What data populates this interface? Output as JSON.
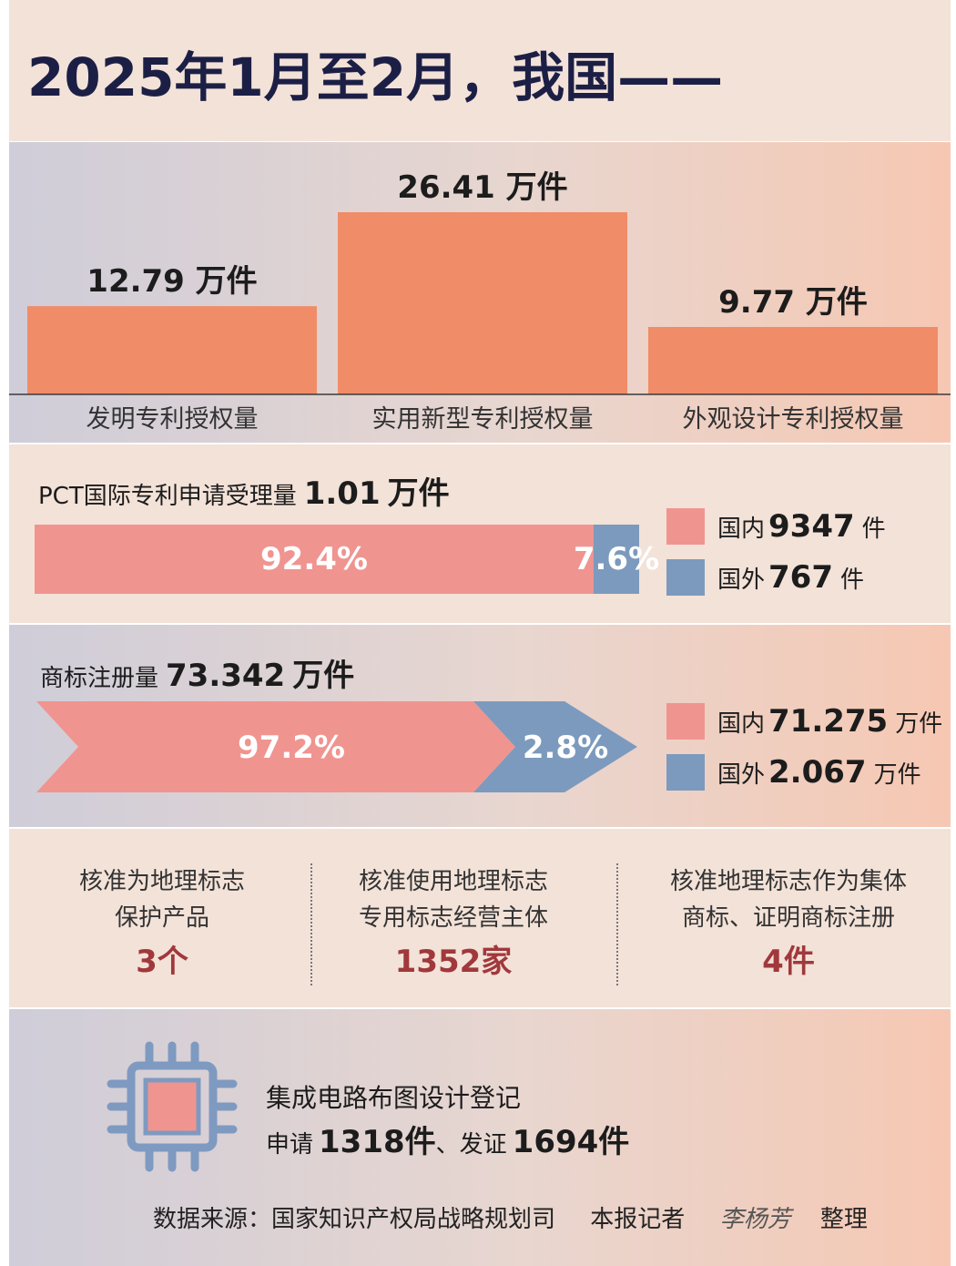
{
  "title": "2025年1月至2月，我国——",
  "chart_data": {
    "type": "bar",
    "categories": [
      "发明专利授权量",
      "实用新型专利授权量",
      "外观设计专利授权量"
    ],
    "values": [
      12.79,
      26.41,
      9.77
    ],
    "value_labels": [
      "12.79 万件",
      "26.41 万件",
      "9.77 万件"
    ],
    "unit": "万件",
    "color": "#f08c68"
  },
  "pct": {
    "label": "PCT国际专利申请受理量",
    "total": "1.01",
    "total_unit": "万件",
    "segments": [
      {
        "pct_label": "92.4%",
        "fraction": 0.924,
        "color": "#f09490"
      },
      {
        "pct_label": "7.6%",
        "fraction": 0.076,
        "color": "#7c9abd"
      }
    ],
    "legend": [
      {
        "name": "国内",
        "value": "9347",
        "unit": "件",
        "color": "#f09490"
      },
      {
        "name": "国外",
        "value": "767",
        "unit": "件",
        "color": "#7c9abd"
      }
    ]
  },
  "trademark": {
    "label": "商标注册量",
    "total": "73.342",
    "total_unit": "万件",
    "segments": [
      {
        "pct_label": "97.2%",
        "fraction": 0.972,
        "color": "#f09490"
      },
      {
        "pct_label": "2.8%",
        "fraction": 0.028,
        "color": "#7c9abd"
      }
    ],
    "legend": [
      {
        "name": "国内",
        "value": "71.275",
        "unit": "万件",
        "color": "#f09490"
      },
      {
        "name": "国外",
        "value": "2.067",
        "unit": "万件",
        "color": "#7c9abd"
      }
    ]
  },
  "gi": [
    {
      "line1": "核准为地理标志",
      "line2": "保护产品",
      "value": "3个"
    },
    {
      "line1": "核准使用地理标志",
      "line2": "专用标志经营主体",
      "value": "1352家"
    },
    {
      "line1": "核准地理标志作为集体",
      "line2": "商标、证明商标注册",
      "value": "4件"
    }
  ],
  "ic": {
    "line1": "集成电路布图设计登记",
    "apply_label": "申请",
    "apply_value": "1318件",
    "cert_label": "、发证",
    "cert_value": "1694件",
    "icon": "chip-icon"
  },
  "credit": {
    "source": "数据来源：国家知识产权局战略规划司",
    "reporter": "本报记者",
    "name": "李杨芳",
    "action": "整理"
  }
}
